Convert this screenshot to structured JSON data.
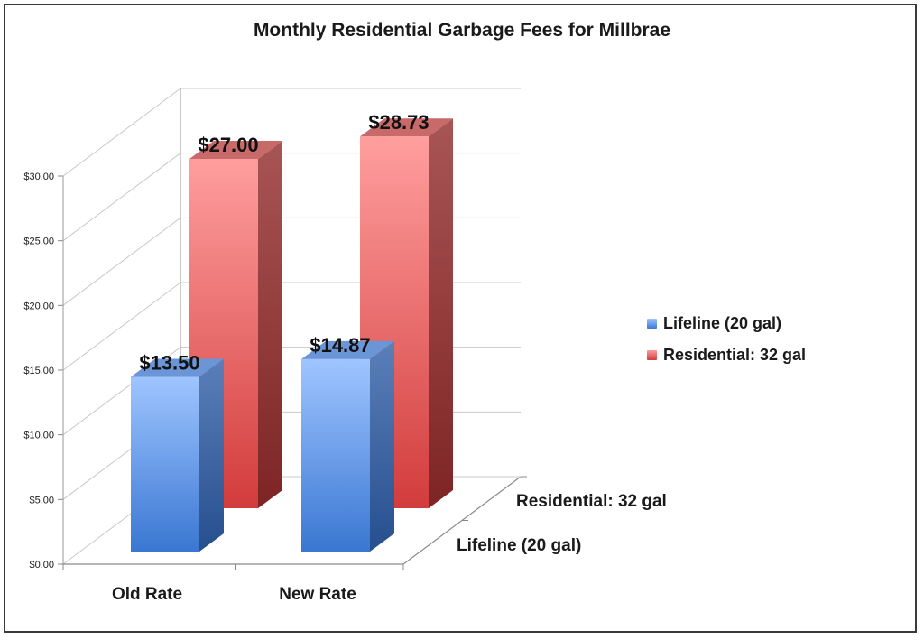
{
  "chart_data": {
    "type": "bar",
    "title": "Monthly Residential Garbage Fees for Millbrae",
    "categories": [
      "Old Rate",
      "New Rate"
    ],
    "series": [
      {
        "name": "Lifeline (20 gal)",
        "values": [
          13.5,
          14.87
        ],
        "labels": [
          "$13.50",
          "$14.87"
        ],
        "color": "#4a86de"
      },
      {
        "name": "Residential: 32 gal",
        "values": [
          27.0,
          28.73
        ],
        "labels": [
          "$27.00",
          "$28.73"
        ],
        "color": "#e35a5a"
      }
    ],
    "ylim": [
      0,
      30
    ],
    "y_ticks": [
      "$0.00",
      "$5.00",
      "$10.00",
      "$15.00",
      "$20.00",
      "$25.00",
      "$30.00"
    ],
    "depth_labels": [
      "Lifeline (20 gal)",
      "Residential: 32 gal"
    ],
    "legend": [
      "Lifeline (20 gal)",
      "Residential: 32 gal"
    ],
    "legend_position": "right",
    "grid": true,
    "style": "3d-clustered-column"
  }
}
